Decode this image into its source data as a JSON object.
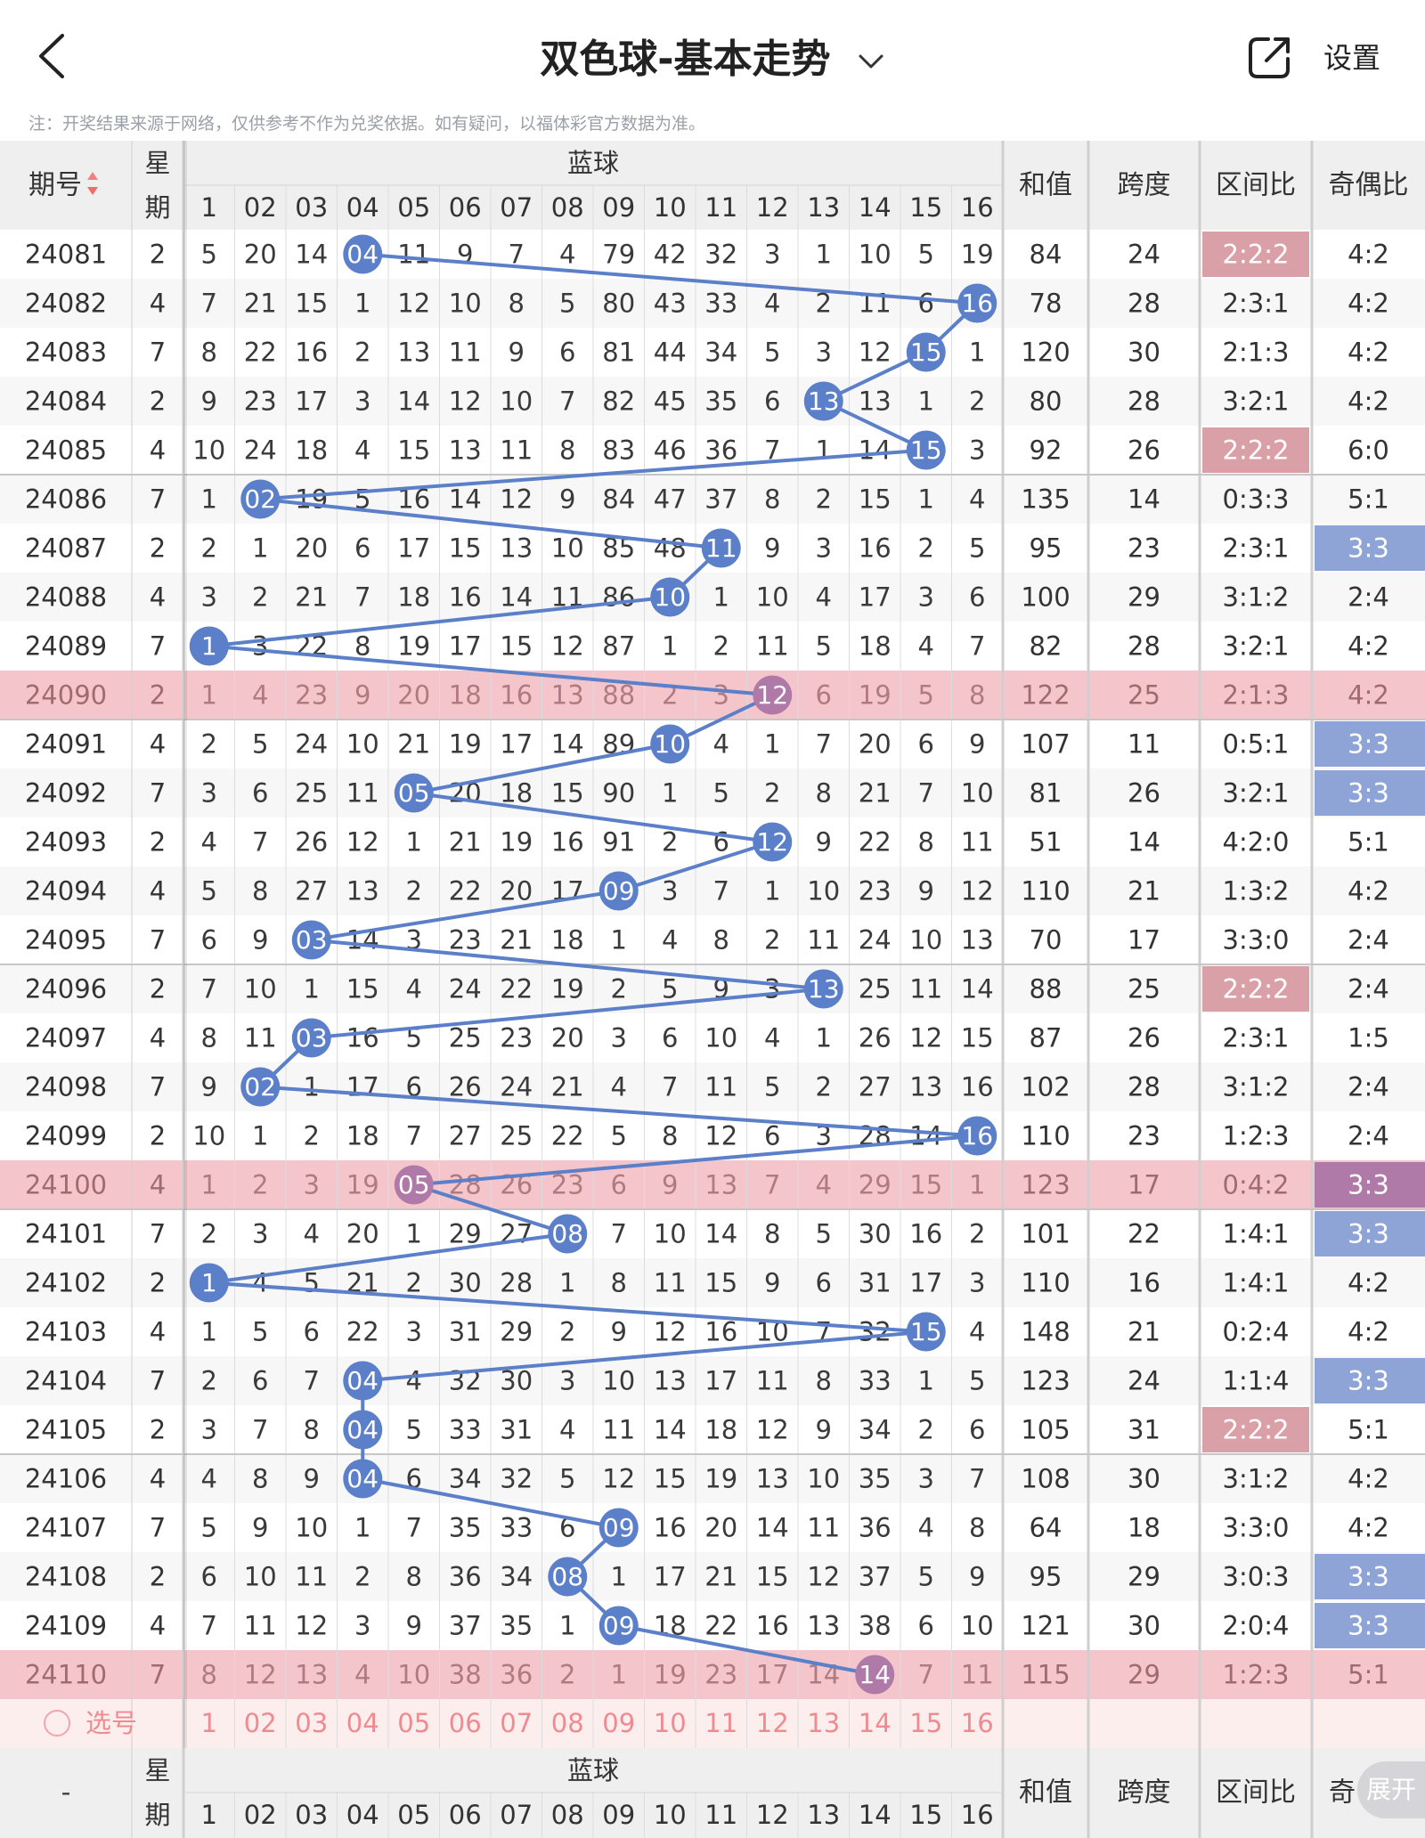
{
  "header": {
    "title": "双色球-基本走势",
    "settings_label": "设置",
    "back_icon": "chevron-left-icon",
    "share_icon": "share-external-icon",
    "dropdown_icon": "chevron-down-icon"
  },
  "notice": "注：开奖结果来源于网络，仅供参考不作为兑奖依据。如有疑问，以福体彩官方数据为准。",
  "table": {
    "col_issue": "期号",
    "col_week_top": "星",
    "col_week_bottom": "期",
    "col_blue": "蓝球",
    "col_sum": "和值",
    "col_span": "跨度",
    "col_zone": "区间比",
    "col_oddeven": "奇偶比",
    "footer_issue": "-",
    "footer_oddeven": "奇",
    "ball_headers": [
      "1",
      "02",
      "03",
      "04",
      "05",
      "06",
      "07",
      "08",
      "09",
      "10",
      "11",
      "12",
      "13",
      "14",
      "15",
      "16"
    ],
    "select_label": "选号",
    "select_balls": [
      "1",
      "02",
      "03",
      "04",
      "05",
      "06",
      "07",
      "08",
      "09",
      "10",
      "11",
      "12",
      "13",
      "14",
      "15",
      "16"
    ],
    "rows": [
      {
        "issue": "24081",
        "week": "2",
        "cells": [
          "5",
          "20",
          "14",
          "04",
          "11",
          "9",
          "7",
          "4",
          "79",
          "42",
          "32",
          "3",
          "1",
          "10",
          "5",
          "19"
        ],
        "hit": 4,
        "sum": "84",
        "span": "24",
        "zone": "2:2:2",
        "oe": "4:2",
        "zhl": true,
        "ohl": false,
        "pink": false
      },
      {
        "issue": "24082",
        "week": "4",
        "cells": [
          "7",
          "21",
          "15",
          "1",
          "12",
          "10",
          "8",
          "5",
          "80",
          "43",
          "33",
          "4",
          "2",
          "11",
          "6",
          "16"
        ],
        "hit": 16,
        "sum": "78",
        "span": "28",
        "zone": "2:3:1",
        "oe": "4:2",
        "zhl": false,
        "ohl": false,
        "pink": false
      },
      {
        "issue": "24083",
        "week": "7",
        "cells": [
          "8",
          "22",
          "16",
          "2",
          "13",
          "11",
          "9",
          "6",
          "81",
          "44",
          "34",
          "5",
          "3",
          "12",
          "15",
          "1"
        ],
        "hit": 15,
        "sum": "120",
        "span": "30",
        "zone": "2:1:3",
        "oe": "4:2",
        "zhl": false,
        "ohl": false,
        "pink": false
      },
      {
        "issue": "24084",
        "week": "2",
        "cells": [
          "9",
          "23",
          "17",
          "3",
          "14",
          "12",
          "10",
          "7",
          "82",
          "45",
          "35",
          "6",
          "13",
          "13",
          "1",
          "2"
        ],
        "hit": 13,
        "sum": "80",
        "span": "28",
        "zone": "3:2:1",
        "oe": "4:2",
        "zhl": false,
        "ohl": false,
        "pink": false
      },
      {
        "issue": "24085",
        "week": "4",
        "cells": [
          "10",
          "24",
          "18",
          "4",
          "15",
          "13",
          "11",
          "8",
          "83",
          "46",
          "36",
          "7",
          "1",
          "14",
          "15",
          "3"
        ],
        "hit": 15,
        "sum": "92",
        "span": "26",
        "zone": "2:2:2",
        "oe": "6:0",
        "zhl": true,
        "ohl": false,
        "pink": false
      },
      {
        "issue": "24086",
        "week": "7",
        "cells": [
          "1",
          "02",
          "19",
          "5",
          "16",
          "14",
          "12",
          "9",
          "84",
          "47",
          "37",
          "8",
          "2",
          "15",
          "1",
          "4"
        ],
        "hit": 2,
        "sum": "135",
        "span": "14",
        "zone": "0:3:3",
        "oe": "5:1",
        "zhl": false,
        "ohl": false,
        "pink": false
      },
      {
        "issue": "24087",
        "week": "2",
        "cells": [
          "2",
          "1",
          "20",
          "6",
          "17",
          "15",
          "13",
          "10",
          "85",
          "48",
          "11",
          "9",
          "3",
          "16",
          "2",
          "5"
        ],
        "hit": 11,
        "sum": "95",
        "span": "23",
        "zone": "2:3:1",
        "oe": "3:3",
        "zhl": false,
        "ohl": true,
        "pink": false
      },
      {
        "issue": "24088",
        "week": "4",
        "cells": [
          "3",
          "2",
          "21",
          "7",
          "18",
          "16",
          "14",
          "11",
          "86",
          "10",
          "1",
          "10",
          "4",
          "17",
          "3",
          "6"
        ],
        "hit": 10,
        "sum": "100",
        "span": "29",
        "zone": "3:1:2",
        "oe": "2:4",
        "zhl": false,
        "ohl": false,
        "pink": false
      },
      {
        "issue": "24089",
        "week": "7",
        "cells": [
          "1",
          "3",
          "22",
          "8",
          "19",
          "17",
          "15",
          "12",
          "87",
          "1",
          "2",
          "11",
          "5",
          "18",
          "4",
          "7"
        ],
        "hit": 1,
        "sum": "82",
        "span": "28",
        "zone": "3:2:1",
        "oe": "4:2",
        "zhl": false,
        "ohl": false,
        "pink": false
      },
      {
        "issue": "24090",
        "week": "2",
        "cells": [
          "1",
          "4",
          "23",
          "9",
          "20",
          "18",
          "16",
          "13",
          "88",
          "2",
          "3",
          "12",
          "6",
          "19",
          "5",
          "8"
        ],
        "hit": 12,
        "sum": "122",
        "span": "25",
        "zone": "2:1:3",
        "oe": "4:2",
        "zhl": false,
        "ohl": false,
        "pink": true
      },
      {
        "issue": "24091",
        "week": "4",
        "cells": [
          "2",
          "5",
          "24",
          "10",
          "21",
          "19",
          "17",
          "14",
          "89",
          "10",
          "4",
          "1",
          "7",
          "20",
          "6",
          "9"
        ],
        "hit": 10,
        "sum": "107",
        "span": "11",
        "zone": "0:5:1",
        "oe": "3:3",
        "zhl": false,
        "ohl": true,
        "pink": false
      },
      {
        "issue": "24092",
        "week": "7",
        "cells": [
          "3",
          "6",
          "25",
          "11",
          "05",
          "20",
          "18",
          "15",
          "90",
          "1",
          "5",
          "2",
          "8",
          "21",
          "7",
          "10"
        ],
        "hit": 5,
        "sum": "81",
        "span": "26",
        "zone": "3:2:1",
        "oe": "3:3",
        "zhl": false,
        "ohl": true,
        "pink": false
      },
      {
        "issue": "24093",
        "week": "2",
        "cells": [
          "4",
          "7",
          "26",
          "12",
          "1",
          "21",
          "19",
          "16",
          "91",
          "2",
          "6",
          "12",
          "9",
          "22",
          "8",
          "11"
        ],
        "hit": 12,
        "sum": "51",
        "span": "14",
        "zone": "4:2:0",
        "oe": "5:1",
        "zhl": false,
        "ohl": false,
        "pink": false
      },
      {
        "issue": "24094",
        "week": "4",
        "cells": [
          "5",
          "8",
          "27",
          "13",
          "2",
          "22",
          "20",
          "17",
          "09",
          "3",
          "7",
          "1",
          "10",
          "23",
          "9",
          "12"
        ],
        "hit": 9,
        "sum": "110",
        "span": "21",
        "zone": "1:3:2",
        "oe": "4:2",
        "zhl": false,
        "ohl": false,
        "pink": false
      },
      {
        "issue": "24095",
        "week": "7",
        "cells": [
          "6",
          "9",
          "03",
          "14",
          "3",
          "23",
          "21",
          "18",
          "1",
          "4",
          "8",
          "2",
          "11",
          "24",
          "10",
          "13"
        ],
        "hit": 3,
        "sum": "70",
        "span": "17",
        "zone": "3:3:0",
        "oe": "2:4",
        "zhl": false,
        "ohl": false,
        "pink": false
      },
      {
        "issue": "24096",
        "week": "2",
        "cells": [
          "7",
          "10",
          "1",
          "15",
          "4",
          "24",
          "22",
          "19",
          "2",
          "5",
          "9",
          "3",
          "13",
          "25",
          "11",
          "14"
        ],
        "hit": 13,
        "sum": "88",
        "span": "25",
        "zone": "2:2:2",
        "oe": "2:4",
        "zhl": true,
        "ohl": false,
        "pink": false
      },
      {
        "issue": "24097",
        "week": "4",
        "cells": [
          "8",
          "11",
          "03",
          "16",
          "5",
          "25",
          "23",
          "20",
          "3",
          "6",
          "10",
          "4",
          "1",
          "26",
          "12",
          "15"
        ],
        "hit": 3,
        "sum": "87",
        "span": "26",
        "zone": "2:3:1",
        "oe": "1:5",
        "zhl": false,
        "ohl": false,
        "pink": false
      },
      {
        "issue": "24098",
        "week": "7",
        "cells": [
          "9",
          "02",
          "1",
          "17",
          "6",
          "26",
          "24",
          "21",
          "4",
          "7",
          "11",
          "5",
          "2",
          "27",
          "13",
          "16"
        ],
        "hit": 2,
        "sum": "102",
        "span": "28",
        "zone": "3:1:2",
        "oe": "2:4",
        "zhl": false,
        "ohl": false,
        "pink": false
      },
      {
        "issue": "24099",
        "week": "2",
        "cells": [
          "10",
          "1",
          "2",
          "18",
          "7",
          "27",
          "25",
          "22",
          "5",
          "8",
          "12",
          "6",
          "3",
          "28",
          "14",
          "16"
        ],
        "hit": 16,
        "sum": "110",
        "span": "23",
        "zone": "1:2:3",
        "oe": "2:4",
        "zhl": false,
        "ohl": false,
        "pink": false
      },
      {
        "issue": "24100",
        "week": "4",
        "cells": [
          "1",
          "2",
          "3",
          "19",
          "05",
          "28",
          "26",
          "23",
          "6",
          "9",
          "13",
          "7",
          "4",
          "29",
          "15",
          "1"
        ],
        "hit": 5,
        "sum": "123",
        "span": "17",
        "zone": "0:4:2",
        "oe": "3:3",
        "zhl": false,
        "ohl": true,
        "pink": true
      },
      {
        "issue": "24101",
        "week": "7",
        "cells": [
          "2",
          "3",
          "4",
          "20",
          "1",
          "29",
          "27",
          "08",
          "7",
          "10",
          "14",
          "8",
          "5",
          "30",
          "16",
          "2"
        ],
        "hit": 8,
        "sum": "101",
        "span": "22",
        "zone": "1:4:1",
        "oe": "3:3",
        "zhl": false,
        "ohl": true,
        "pink": false
      },
      {
        "issue": "24102",
        "week": "2",
        "cells": [
          "1",
          "4",
          "5",
          "21",
          "2",
          "30",
          "28",
          "1",
          "8",
          "11",
          "15",
          "9",
          "6",
          "31",
          "17",
          "3"
        ],
        "hit": 1,
        "sum": "110",
        "span": "16",
        "zone": "1:4:1",
        "oe": "4:2",
        "zhl": false,
        "ohl": false,
        "pink": false
      },
      {
        "issue": "24103",
        "week": "4",
        "cells": [
          "1",
          "5",
          "6",
          "22",
          "3",
          "31",
          "29",
          "2",
          "9",
          "12",
          "16",
          "10",
          "7",
          "32",
          "15",
          "4"
        ],
        "hit": 15,
        "sum": "148",
        "span": "21",
        "zone": "0:2:4",
        "oe": "4:2",
        "zhl": false,
        "ohl": false,
        "pink": false
      },
      {
        "issue": "24104",
        "week": "7",
        "cells": [
          "2",
          "6",
          "7",
          "04",
          "4",
          "32",
          "30",
          "3",
          "10",
          "13",
          "17",
          "11",
          "8",
          "33",
          "1",
          "5"
        ],
        "hit": 4,
        "sum": "123",
        "span": "24",
        "zone": "1:1:4",
        "oe": "3:3",
        "zhl": false,
        "ohl": true,
        "pink": false
      },
      {
        "issue": "24105",
        "week": "2",
        "cells": [
          "3",
          "7",
          "8",
          "04",
          "5",
          "33",
          "31",
          "4",
          "11",
          "14",
          "18",
          "12",
          "9",
          "34",
          "2",
          "6"
        ],
        "hit": 4,
        "sum": "105",
        "span": "31",
        "zone": "2:2:2",
        "oe": "5:1",
        "zhl": true,
        "ohl": false,
        "pink": false
      },
      {
        "issue": "24106",
        "week": "4",
        "cells": [
          "4",
          "8",
          "9",
          "04",
          "6",
          "34",
          "32",
          "5",
          "12",
          "15",
          "19",
          "13",
          "10",
          "35",
          "3",
          "7"
        ],
        "hit": 4,
        "sum": "108",
        "span": "30",
        "zone": "3:1:2",
        "oe": "4:2",
        "zhl": false,
        "ohl": false,
        "pink": false
      },
      {
        "issue": "24107",
        "week": "7",
        "cells": [
          "5",
          "9",
          "10",
          "1",
          "7",
          "35",
          "33",
          "6",
          "09",
          "16",
          "20",
          "14",
          "11",
          "36",
          "4",
          "8"
        ],
        "hit": 9,
        "sum": "64",
        "span": "18",
        "zone": "3:3:0",
        "oe": "4:2",
        "zhl": false,
        "ohl": false,
        "pink": false
      },
      {
        "issue": "24108",
        "week": "2",
        "cells": [
          "6",
          "10",
          "11",
          "2",
          "8",
          "36",
          "34",
          "08",
          "1",
          "17",
          "21",
          "15",
          "12",
          "37",
          "5",
          "9"
        ],
        "hit": 8,
        "sum": "95",
        "span": "29",
        "zone": "3:0:3",
        "oe": "3:3",
        "zhl": false,
        "ohl": true,
        "pink": false
      },
      {
        "issue": "24109",
        "week": "4",
        "cells": [
          "7",
          "11",
          "12",
          "3",
          "9",
          "37",
          "35",
          "1",
          "09",
          "18",
          "22",
          "16",
          "13",
          "38",
          "6",
          "10"
        ],
        "hit": 9,
        "sum": "121",
        "span": "30",
        "zone": "2:0:4",
        "oe": "3:3",
        "zhl": false,
        "ohl": true,
        "pink": false
      },
      {
        "issue": "24110",
        "week": "7",
        "cells": [
          "8",
          "12",
          "13",
          "4",
          "10",
          "38",
          "36",
          "2",
          "1",
          "19",
          "23",
          "17",
          "14",
          "14",
          "7",
          "11"
        ],
        "hit": 14,
        "sum": "115",
        "span": "29",
        "zone": "1:2:3",
        "oe": "5:1",
        "zhl": false,
        "ohl": false,
        "pink": true
      }
    ]
  },
  "expand_label": "展开",
  "colors": {
    "blue_ball": "#5b7fc8",
    "purple_ball": "#b07aa8",
    "pink_row": "#f4c6cb",
    "zone_highlight": "#d9a1a7",
    "oddeven_highlight": "#8fa4d6",
    "header_bg": "#efefef"
  }
}
